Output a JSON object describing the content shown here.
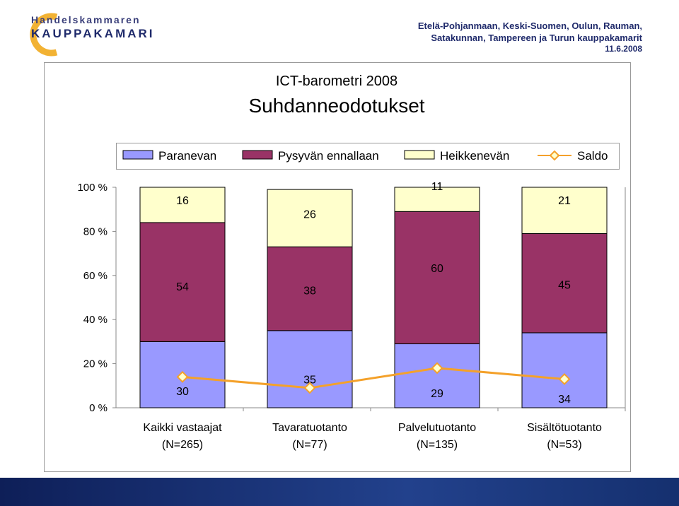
{
  "header": {
    "logo_line1": "Handelskammaren",
    "logo_line2": "KAUPPAKAMARI",
    "org_line1": "Etelä-Pohjanmaan, Keski-Suomen, Oulun, Rauman,",
    "org_line2": "Satakunnan, Tampereen ja Turun kauppakamarit",
    "date": "11.6.2008"
  },
  "chart_data": {
    "type": "bar",
    "stacked": true,
    "title": "ICT-barometri 2008",
    "subtitle": "Suhdanneodotukset",
    "categories": [
      [
        "Kaikki vastaajat",
        "(N=265)"
      ],
      [
        "Tavaratuotanto",
        "(N=77)"
      ],
      [
        "Palvelutuotanto",
        "(N=135)"
      ],
      [
        "Sisältötuotanto",
        "(N=53)"
      ]
    ],
    "series": [
      {
        "name": "Paranevan",
        "values": [
          30,
          35,
          29,
          34
        ],
        "color": "#9999ff"
      },
      {
        "name": "Pysyvän ennallaan",
        "values": [
          54,
          38,
          60,
          45
        ],
        "color": "#993366"
      },
      {
        "name": "Heikkenevän",
        "values": [
          16,
          26,
          11,
          21
        ],
        "color": "#ffffcc"
      }
    ],
    "line_series": {
      "name": "Saldo",
      "values": [
        14,
        9,
        18,
        13
      ],
      "color": "#f4a12a"
    },
    "ylim": [
      0,
      100
    ],
    "yticks": [
      "0 %",
      "20 %",
      "40 %",
      "60 %",
      "80 %",
      "100 %"
    ],
    "legend_position": "top",
    "grid": false
  }
}
